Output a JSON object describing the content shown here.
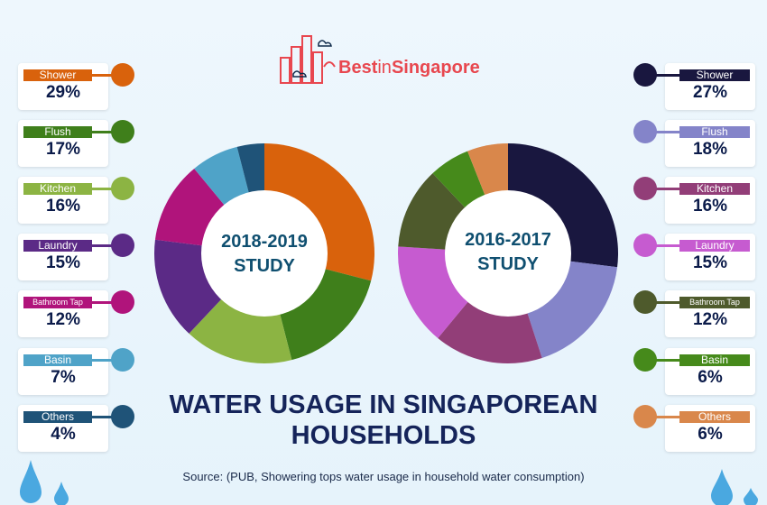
{
  "logo": {
    "text_part1": "Best",
    "text_part2": "in",
    "text_part3": "Singapore"
  },
  "chart_data": [
    {
      "type": "pie",
      "center_label_line1": "2018-2019",
      "center_label_line2": "STUDY",
      "categories": [
        "Shower",
        "Flush",
        "Kitchen",
        "Laundry",
        "Bathroom Tap",
        "Basin",
        "Others"
      ],
      "values": [
        29,
        17,
        16,
        15,
        12,
        7,
        4
      ],
      "colors": [
        "#d9620c",
        "#3f7f1b",
        "#8cb443",
        "#5b2a86",
        "#b0147b",
        "#4fa3c8",
        "#1f5378"
      ]
    },
    {
      "type": "pie",
      "center_label_line1": "2016-2017",
      "center_label_line2": "STUDY",
      "categories": [
        "Shower",
        "Flush",
        "Kitchen",
        "Laundry",
        "Bathroom Tap",
        "Basin",
        "Others"
      ],
      "values": [
        27,
        18,
        16,
        15,
        12,
        6,
        6
      ],
      "colors": [
        "#19173f",
        "#8484c9",
        "#923e78",
        "#c65bd0",
        "#4e5a2c",
        "#468a1b",
        "#d9874b"
      ]
    }
  ],
  "title_line1": "WATER USAGE IN SINGAPOREAN",
  "title_line2": "HOUSEHOLDS",
  "source": "Source: (PUB, Showering tops water usage in household water consumption)"
}
